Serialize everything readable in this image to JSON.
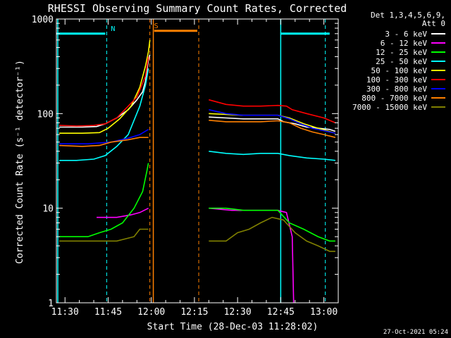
{
  "chart_data": {
    "type": "line",
    "title": "RHESSI Observing Summary Count Rates, Corrected",
    "xlabel": "Start Time (28-Dec-03 11:28:02)",
    "ylabel": "Corrected Count Rate (s⁻¹ detector⁻¹)",
    "yscale": "log",
    "ylim": [
      1,
      1000
    ],
    "xlim_minutes": [
      -1,
      97
    ],
    "x_ticks": [
      {
        "label": "11:30",
        "minutes": 2
      },
      {
        "label": "11:45",
        "minutes": 17
      },
      {
        "label": "12:00",
        "minutes": 32
      },
      {
        "label": "12:15",
        "minutes": 47
      },
      {
        "label": "12:30",
        "minutes": 62
      },
      {
        "label": "12:45",
        "minutes": 77
      },
      {
        "label": "13:00",
        "minutes": 92
      }
    ],
    "y_ticks": [
      {
        "label": "1",
        "value": 1
      },
      {
        "label": "10",
        "value": 10
      },
      {
        "label": "100",
        "value": 100
      },
      {
        "label": "1000",
        "value": 1000
      }
    ],
    "legend_header": [
      "Det 1,3,4,5,6,9,",
      "Att 0"
    ],
    "legend_position": "right",
    "series": [
      {
        "name": "3 - 6 keV",
        "color": "#ffffff",
        "points": [
          [
            0,
            72
          ],
          [
            8,
            72
          ],
          [
            13,
            73
          ],
          [
            16,
            78
          ],
          [
            20,
            90
          ],
          [
            24,
            110
          ],
          [
            27,
            140
          ],
          [
            29,
            170
          ],
          [
            30,
            220
          ],
          [
            31,
            370
          ],
          [
            31.5,
            420
          ],
          [
            null,
            null
          ],
          [
            52,
            92
          ],
          [
            58,
            90
          ],
          [
            64,
            88
          ],
          [
            70,
            88
          ],
          [
            76,
            88
          ],
          [
            78,
            82
          ],
          [
            82,
            78
          ],
          [
            86,
            72
          ],
          [
            90,
            70
          ],
          [
            94,
            68
          ],
          [
            96,
            65
          ]
        ]
      },
      {
        "name": "6 - 12 keV",
        "color": "#ff00ff",
        "points": [
          [
            13,
            8
          ],
          [
            20,
            8
          ],
          [
            25,
            8.5
          ],
          [
            28,
            9
          ],
          [
            31,
            10
          ],
          [
            null,
            null
          ],
          [
            52,
            10
          ],
          [
            60,
            9.5
          ],
          [
            68,
            9.5
          ],
          [
            76,
            9.5
          ],
          [
            79,
            9
          ],
          [
            81,
            5
          ],
          [
            81.5,
            1
          ]
        ]
      },
      {
        "name": "12 - 25 keV",
        "color": "#00ff00",
        "points": [
          [
            0,
            5
          ],
          [
            10,
            5
          ],
          [
            14,
            5.5
          ],
          [
            18,
            6
          ],
          [
            22,
            7
          ],
          [
            26,
            10
          ],
          [
            29,
            15
          ],
          [
            30.5,
            25
          ],
          [
            31,
            30
          ],
          [
            null,
            null
          ],
          [
            52,
            10
          ],
          [
            58,
            10
          ],
          [
            64,
            9.5
          ],
          [
            70,
            9.5
          ],
          [
            76,
            9.5
          ],
          [
            80,
            7
          ],
          [
            85,
            6
          ],
          [
            90,
            5
          ],
          [
            94,
            4.5
          ],
          [
            96,
            4.5
          ]
        ]
      },
      {
        "name": "25 - 50 keV",
        "color": "#00ffff",
        "points": [
          [
            0,
            32
          ],
          [
            6,
            32
          ],
          [
            12,
            33
          ],
          [
            16,
            36
          ],
          [
            20,
            45
          ],
          [
            24,
            60
          ],
          [
            28,
            120
          ],
          [
            30,
            200
          ],
          [
            31,
            300
          ],
          [
            null,
            null
          ],
          [
            52,
            40
          ],
          [
            58,
            38
          ],
          [
            64,
            37
          ],
          [
            70,
            38
          ],
          [
            76,
            38
          ],
          [
            80,
            36
          ],
          [
            86,
            34
          ],
          [
            92,
            33
          ],
          [
            96,
            32
          ]
        ]
      },
      {
        "name": "50 - 100 keV",
        "color": "#ffff00",
        "points": [
          [
            0,
            62
          ],
          [
            8,
            62
          ],
          [
            14,
            63
          ],
          [
            17,
            70
          ],
          [
            21,
            88
          ],
          [
            25,
            120
          ],
          [
            28,
            190
          ],
          [
            30,
            320
          ],
          [
            31,
            450
          ],
          [
            31.5,
            600
          ],
          [
            null,
            null
          ],
          [
            52,
            100
          ],
          [
            58,
            98
          ],
          [
            64,
            96
          ],
          [
            70,
            96
          ],
          [
            76,
            96
          ],
          [
            80,
            90
          ],
          [
            85,
            78
          ],
          [
            90,
            70
          ],
          [
            96,
            62
          ]
        ]
      },
      {
        "name": "100 - 300 keV",
        "color": "#ff0000",
        "points": [
          [
            0,
            75
          ],
          [
            6,
            74
          ],
          [
            12,
            75
          ],
          [
            16,
            78
          ],
          [
            20,
            90
          ],
          [
            24,
            120
          ],
          [
            27,
            150
          ],
          [
            30,
            250
          ],
          [
            31,
            400
          ],
          [
            null,
            null
          ],
          [
            52,
            140
          ],
          [
            58,
            125
          ],
          [
            64,
            120
          ],
          [
            70,
            120
          ],
          [
            76,
            122
          ],
          [
            79,
            120
          ],
          [
            81,
            110
          ],
          [
            86,
            100
          ],
          [
            92,
            90
          ],
          [
            96,
            80
          ]
        ]
      },
      {
        "name": "300 - 800 keV",
        "color": "#0000ff",
        "points": [
          [
            0,
            48
          ],
          [
            10,
            48
          ],
          [
            18,
            50
          ],
          [
            24,
            55
          ],
          [
            28,
            60
          ],
          [
            31,
            68
          ],
          [
            null,
            null
          ],
          [
            52,
            110
          ],
          [
            58,
            100
          ],
          [
            64,
            96
          ],
          [
            70,
            96
          ],
          [
            76,
            96
          ],
          [
            80,
            88
          ],
          [
            84,
            78
          ],
          [
            88,
            70
          ],
          [
            92,
            66
          ],
          [
            96,
            62
          ]
        ]
      },
      {
        "name": "800 - 7000 keV",
        "color": "#ff8000",
        "points": [
          [
            0,
            46
          ],
          [
            8,
            45
          ],
          [
            14,
            46
          ],
          [
            18,
            50
          ],
          [
            24,
            53
          ],
          [
            28,
            56
          ],
          [
            31,
            56
          ],
          [
            null,
            null
          ],
          [
            52,
            85
          ],
          [
            58,
            82
          ],
          [
            64,
            82
          ],
          [
            70,
            82
          ],
          [
            76,
            84
          ],
          [
            80,
            80
          ],
          [
            84,
            70
          ],
          [
            88,
            64
          ],
          [
            92,
            60
          ],
          [
            96,
            56
          ]
        ]
      },
      {
        "name": "7000 - 15000 keV",
        "color": "#808000",
        "points": [
          [
            0,
            4.5
          ],
          [
            10,
            4.5
          ],
          [
            20,
            4.5
          ],
          [
            26,
            5
          ],
          [
            28,
            6
          ],
          [
            31,
            6
          ],
          [
            null,
            null
          ],
          [
            52,
            4.5
          ],
          [
            58,
            4.5
          ],
          [
            62,
            5.5
          ],
          [
            66,
            6
          ],
          [
            70,
            7
          ],
          [
            74,
            8
          ],
          [
            78,
            7.5
          ],
          [
            82,
            5.5
          ],
          [
            86,
            4.5
          ],
          [
            90,
            4
          ],
          [
            94,
            3.5
          ],
          [
            96,
            3.5
          ]
        ]
      }
    ],
    "annotations": [
      {
        "label": "N",
        "color": "#00ffff",
        "kind": "night-bar",
        "segments": [
          [
            -1,
            16
          ],
          [
            77,
            94
          ]
        ],
        "level": 700,
        "dashed_lines": [
          16.5,
          92.5
        ],
        "solid_lines": [
          -0.5,
          77
        ]
      },
      {
        "label": "S",
        "color": "#ff8000",
        "kind": "saa-bar",
        "segments": [
          [
            33,
            48
          ]
        ],
        "level": 750,
        "dashed_lines": [
          31.5,
          48.5
        ],
        "solid_lines": [
          32.7
        ]
      }
    ],
    "footer_timestamp": "27-Oct-2021 05:24"
  }
}
